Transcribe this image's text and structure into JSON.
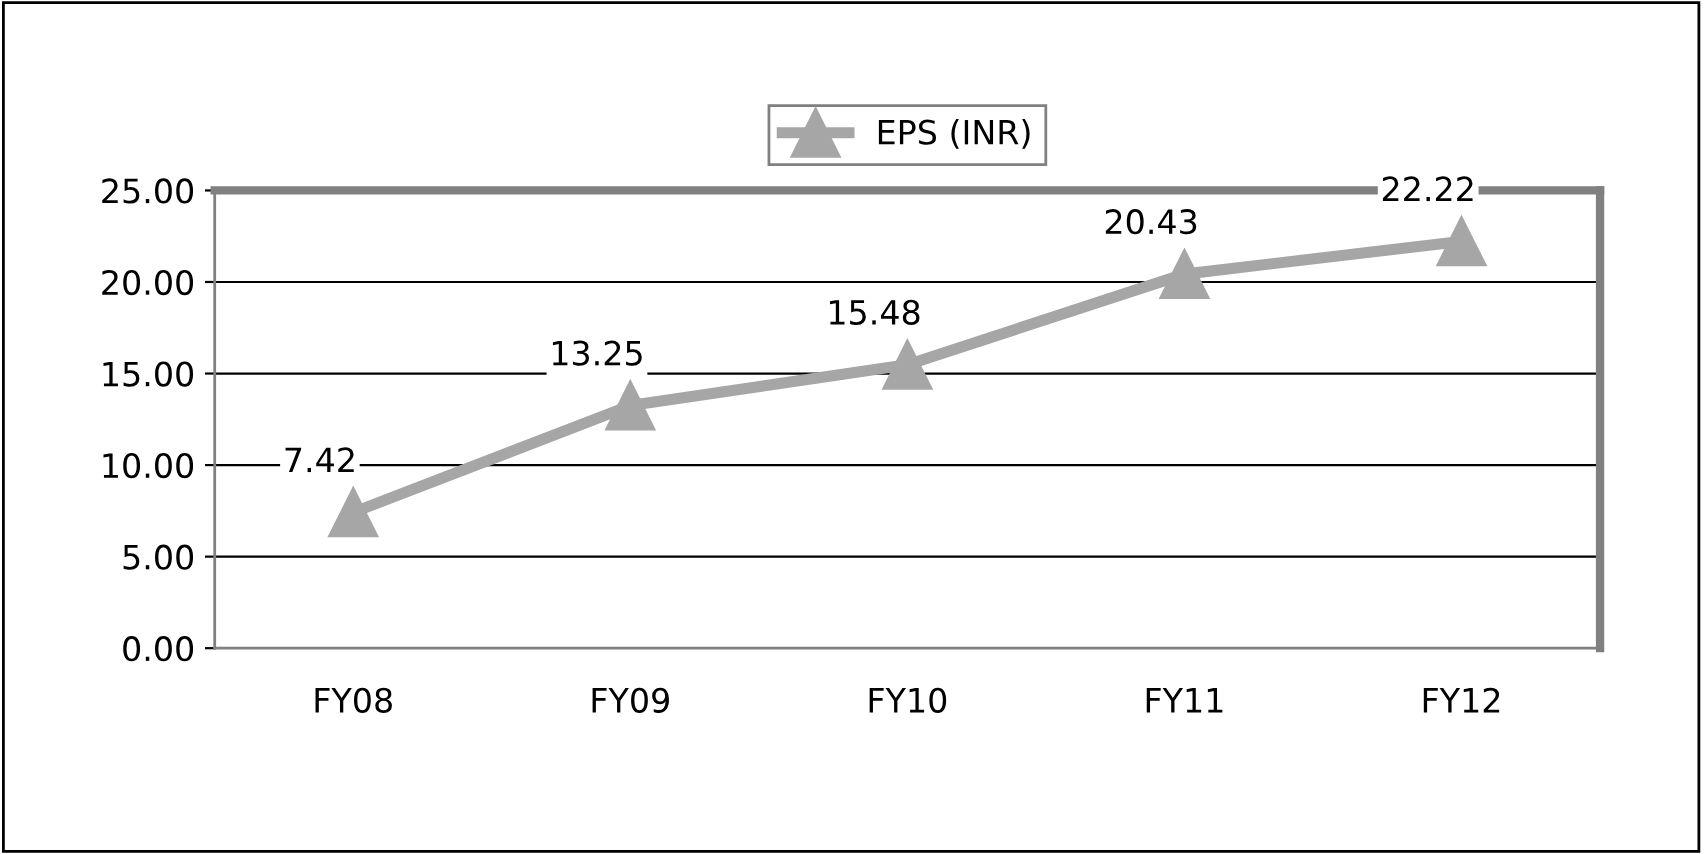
{
  "chart_data": {
    "type": "line",
    "categories": [
      "FY08",
      "FY09",
      "FY10",
      "FY11",
      "FY12"
    ],
    "series": [
      {
        "name": "EPS (INR)",
        "color": "#a6a6a6",
        "values": [
          7.42,
          13.25,
          15.48,
          20.43,
          22.22
        ]
      }
    ],
    "ylim": [
      0,
      25
    ],
    "yticks": [
      {
        "value": 0,
        "label": "0.00"
      },
      {
        "value": 5,
        "label": "5.00"
      },
      {
        "value": 10,
        "label": "10.00"
      },
      {
        "value": 15,
        "label": "15.00"
      },
      {
        "value": 20,
        "label": "20.00"
      },
      {
        "value": 25,
        "label": "25.00"
      }
    ],
    "grid": "y",
    "legend": "top",
    "marker": "triangle",
    "data_labels": true
  }
}
